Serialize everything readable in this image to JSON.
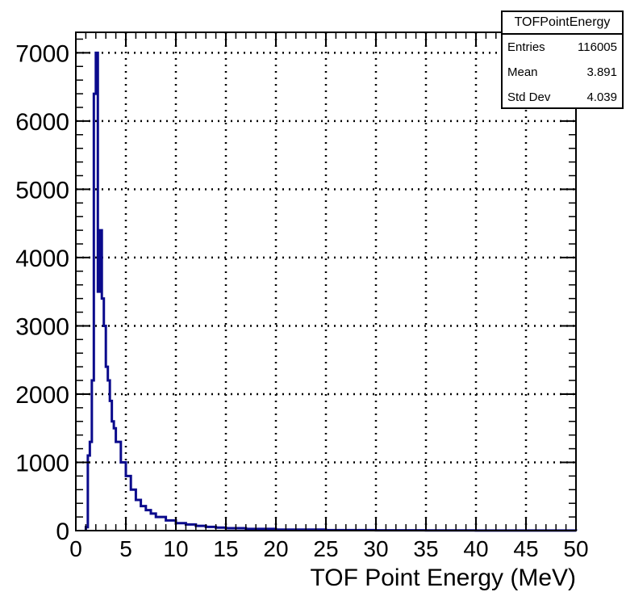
{
  "chart_data": {
    "type": "histogram",
    "title": "",
    "xlabel": "TOF Point Energy (MeV)",
    "ylabel": "",
    "xlim": [
      0,
      50
    ],
    "ylim": [
      0,
      7300
    ],
    "x_ticks": [
      "0",
      "5",
      "10",
      "15",
      "20",
      "25",
      "30",
      "35",
      "40",
      "45",
      "50"
    ],
    "y_ticks": [
      "0",
      "1000",
      "2000",
      "3000",
      "4000",
      "5000",
      "6000",
      "7000"
    ],
    "grid": true,
    "line_color": "#0a0a8c",
    "series": [
      {
        "x": [
          1.0,
          1.2,
          1.4,
          1.6,
          1.8,
          2.0,
          2.2,
          2.4,
          2.6,
          2.8,
          3.0,
          3.2,
          3.4,
          3.6,
          3.8,
          4.0,
          4.5,
          5.0,
          5.5,
          6.0,
          6.5,
          7.0,
          7.5,
          8.0,
          9.0,
          10.0,
          11.0,
          12.0,
          13.0,
          14.0,
          15.0,
          17.0,
          20.0,
          25.0,
          30.0,
          35.0,
          40.0,
          45.0,
          50.0
        ],
        "y": [
          50,
          1100,
          1300,
          2200,
          6400,
          7000,
          3500,
          4400,
          3400,
          3000,
          2400,
          2200,
          1900,
          1600,
          1500,
          1300,
          1000,
          800,
          600,
          450,
          360,
          300,
          250,
          200,
          150,
          110,
          90,
          70,
          55,
          45,
          35,
          25,
          15,
          8,
          5,
          3,
          2,
          1,
          0
        ]
      }
    ]
  },
  "stats_box": {
    "title": "TOFPointEnergy",
    "rows": [
      {
        "label": "Entries",
        "value": "116005"
      },
      {
        "label": "Mean",
        "value": "3.891"
      },
      {
        "label": "Std Dev",
        "value": "4.039"
      }
    ]
  }
}
